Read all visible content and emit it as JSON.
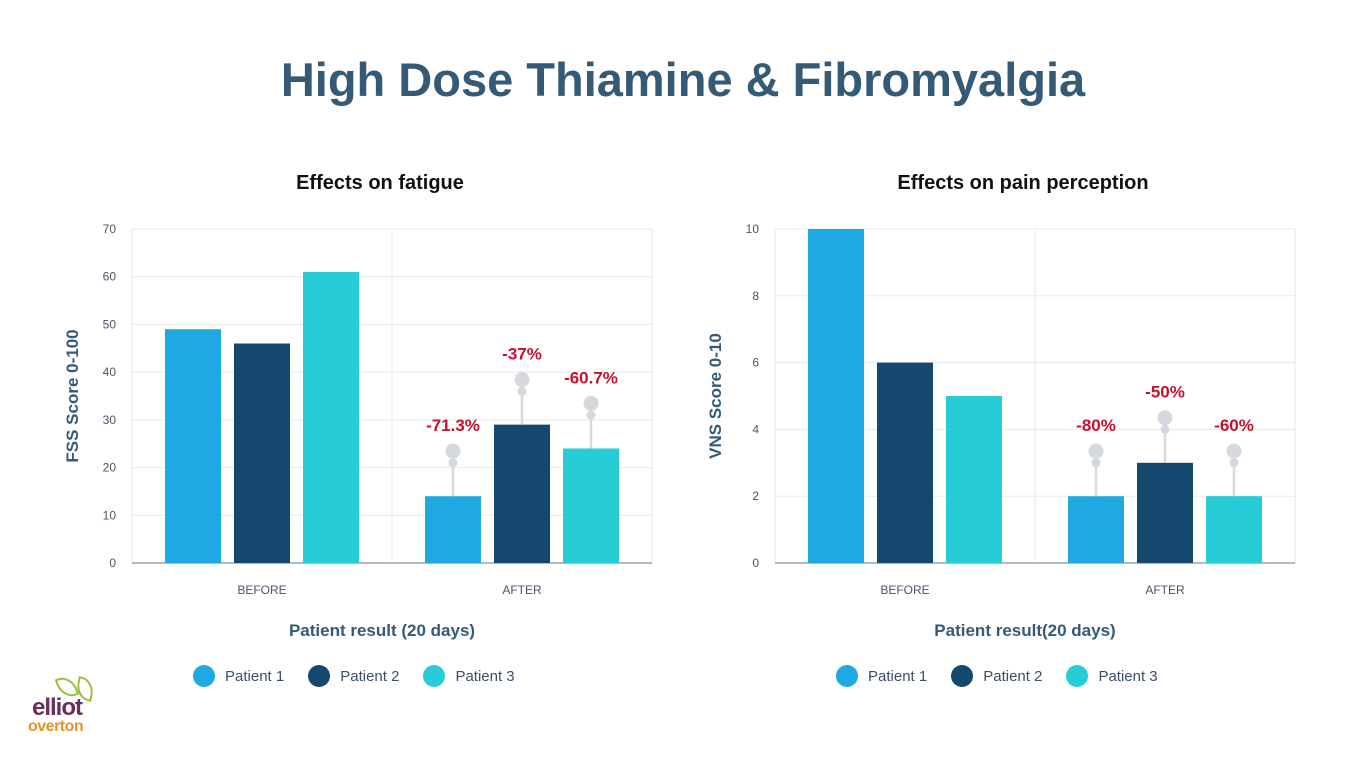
{
  "page_title": "High Dose Thiamine & Fibromyalgia",
  "colors": {
    "patient1": "#1fa9e2",
    "patient2": "#14486f",
    "patient3": "#28ccd6",
    "annotation": "#c8102e",
    "marker": "#d5d8dc"
  },
  "logo": {
    "line1": "elliot",
    "line2": "overton"
  },
  "chart_data": [
    {
      "type": "bar",
      "title": "Effects on fatigue",
      "xlabel": "Patient result (20 days)",
      "ylabel": "FSS Score 0-100",
      "categories": [
        "BEFORE",
        "AFTER"
      ],
      "ylim": [
        0,
        70
      ],
      "yticks": [
        "0",
        "10",
        "20",
        "30",
        "40",
        "50",
        "60",
        "70"
      ],
      "series": [
        {
          "name": "Patient 1",
          "values": [
            49,
            14
          ]
        },
        {
          "name": "Patient 2",
          "values": [
            46,
            29
          ]
        },
        {
          "name": "Patient 3",
          "values": [
            61,
            24
          ]
        }
      ],
      "annotations": [
        "-71.3%",
        "-37%",
        "-60.7%"
      ],
      "grid": true,
      "legend": "bottom"
    },
    {
      "type": "bar",
      "title": "Effects on pain perception",
      "xlabel": "Patient result(20 days)",
      "ylabel": "VNS Score 0-10",
      "categories": [
        "BEFORE",
        "AFTER"
      ],
      "ylim": [
        0,
        10
      ],
      "yticks": [
        "0",
        "2",
        "4",
        "6",
        "8",
        "10"
      ],
      "series": [
        {
          "name": "Patient 1",
          "values": [
            10,
            2
          ]
        },
        {
          "name": "Patient 2",
          "values": [
            6,
            3
          ]
        },
        {
          "name": "Patient 3",
          "values": [
            5,
            2
          ]
        }
      ],
      "annotations": [
        "-80%",
        "-50%",
        "-60%"
      ],
      "grid": true,
      "legend": "bottom"
    }
  ]
}
